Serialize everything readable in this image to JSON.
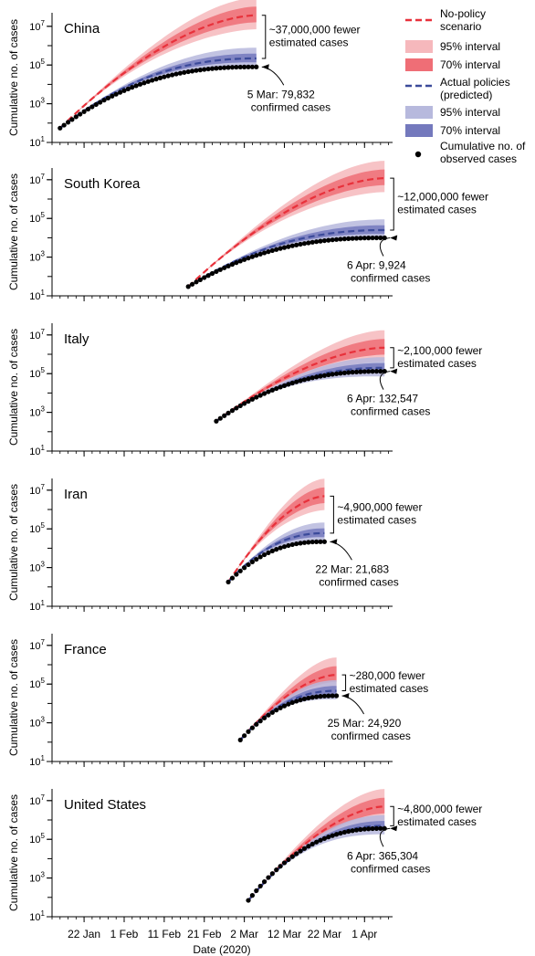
{
  "colors": {
    "nopolicy_line": "#e8313b",
    "nopolicy_95": "#f6b8bc",
    "nopolicy_70": "#ef6e76",
    "actual_line": "#3b4a9a",
    "actual_95": "#b7b9dd",
    "actual_70": "#7479bd",
    "observed": "#000000"
  },
  "legend": {
    "nopolicy": "No-policy scenario",
    "nopolicy_95": "95% interval",
    "nopolicy_70": "70% interval",
    "actual": "Actual policies (predicted)",
    "actual_95": "95% interval",
    "actual_70": "70% interval",
    "observed": "Cumulative no. of observed cases"
  },
  "chart_data": {
    "type": "line",
    "y_scale": "log",
    "ylim": [
      10,
      50000000
    ],
    "yticks": [
      10,
      1000,
      100000,
      10000000
    ],
    "ytick_labels": [
      [
        "10",
        "1"
      ],
      [
        "10",
        "3"
      ],
      [
        "10",
        "5"
      ],
      [
        "10",
        "7"
      ]
    ],
    "ylabel": "Cumulative no. of cases",
    "xlabel": "Date (2020)",
    "xlim": [
      "2020-01-14",
      "2020-04-08"
    ],
    "xticks": [
      "2020-01-22",
      "2020-02-01",
      "2020-02-11",
      "2020-02-21",
      "2020-03-02",
      "2020-03-12",
      "2020-03-22",
      "2020-04-01"
    ],
    "xtick_labels": [
      "22 Jan",
      "1 Feb",
      "11 Feb",
      "21 Feb",
      "2 Mar",
      "12 Mar",
      "22 Mar",
      "1 Apr"
    ],
    "panels": [
      {
        "country": "China",
        "start": "2020-01-16",
        "end": "2020-03-05",
        "observed_start": 55,
        "observed_end": 79832,
        "nopolicy_end": 37000000,
        "actual_end": 220000,
        "fewer_label": "~37,000,000 fewer estimated cases",
        "confirmed_label": "5 Mar: 79,832 confirmed cases"
      },
      {
        "country": "South Korea",
        "start": "2020-02-17",
        "end": "2020-04-06",
        "observed_start": 30,
        "observed_end": 9924,
        "nopolicy_end": 12000000,
        "actual_end": 25000,
        "fewer_label": "~12,000,000 fewer estimated cases",
        "confirmed_label": "6 Apr: 9,924 confirmed cases"
      },
      {
        "country": "Italy",
        "start": "2020-02-24",
        "end": "2020-04-06",
        "observed_start": 350,
        "observed_end": 132547,
        "nopolicy_end": 2200000,
        "actual_end": 200000,
        "fewer_label": "~2,100,000 fewer estimated cases",
        "confirmed_label": "6 Apr: 132,547 confirmed cases"
      },
      {
        "country": "Iran",
        "start": "2020-02-27",
        "end": "2020-03-22",
        "observed_start": 180,
        "observed_end": 21683,
        "nopolicy_end": 4900000,
        "actual_end": 60000,
        "fewer_label": "~4,900,000 fewer estimated cases",
        "confirmed_label": "22 Mar: 21,683 confirmed cases"
      },
      {
        "country": "France",
        "start": "2020-03-01",
        "end": "2020-03-25",
        "observed_start": 130,
        "observed_end": 24920,
        "nopolicy_end": 300000,
        "actual_end": 45000,
        "fewer_label": "~280,000 fewer estimated cases",
        "confirmed_label": "25 Mar: 24,920 confirmed cases"
      },
      {
        "country": "United States",
        "start": "2020-03-03",
        "end": "2020-04-06",
        "observed_start": 70,
        "observed_end": 365304,
        "nopolicy_end": 5000000,
        "actual_end": 500000,
        "fewer_label": "~4,800,000 fewer estimated cases",
        "confirmed_label": "6 Apr: 365,304 confirmed cases"
      }
    ]
  }
}
